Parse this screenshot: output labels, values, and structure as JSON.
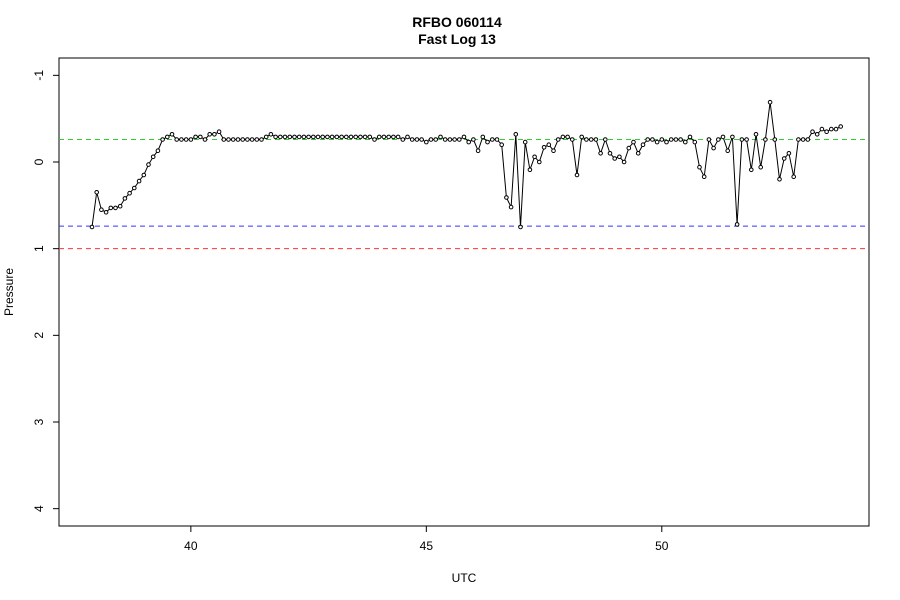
{
  "chart_data": {
    "type": "line",
    "title": "RFBO 060114",
    "subtitle": "Fast Log 13",
    "xlabel": "UTC",
    "ylabel": "Pressure",
    "xlim": [
      37.2,
      54.4
    ],
    "ylim": [
      4.2,
      -1.2
    ],
    "y_axis_reversed": true,
    "grid": false,
    "x_ticks": [
      {
        "value": 40,
        "label": "40"
      },
      {
        "value": 45,
        "label": "45"
      },
      {
        "value": 50,
        "label": "50"
      }
    ],
    "y_ticks": [
      {
        "value": -1,
        "label": "-1"
      },
      {
        "value": 0,
        "label": "0"
      },
      {
        "value": 1,
        "label": "1"
      },
      {
        "value": 2,
        "label": "2"
      },
      {
        "value": 3,
        "label": "3"
      },
      {
        "value": 4,
        "label": "4"
      }
    ],
    "reference_lines": [
      {
        "y": -0.26,
        "color": "#33cc33",
        "style": "dashed"
      },
      {
        "y": 0.74,
        "color": "#3333ff",
        "style": "dashed"
      },
      {
        "y": 1.0,
        "color": "#ff3333",
        "style": "dashed"
      }
    ],
    "series": [
      {
        "color": "#000000",
        "marker": "circle",
        "x": [
          37.9,
          38.0,
          38.1,
          38.2,
          38.3,
          38.4,
          38.5,
          38.6,
          38.7,
          38.8,
          38.9,
          39.0,
          39.1,
          39.2,
          39.3,
          39.4,
          39.5,
          39.6,
          39.7,
          39.8,
          39.9,
          40.0,
          40.1,
          40.2,
          40.3,
          40.4,
          40.5,
          40.6,
          40.7,
          40.8,
          40.9,
          41.0,
          41.1,
          41.2,
          41.3,
          41.4,
          41.5,
          41.6,
          41.7,
          41.8,
          41.9,
          42.0,
          42.1,
          42.2,
          42.3,
          42.4,
          42.5,
          42.6,
          42.7,
          42.8,
          42.9,
          43.0,
          43.1,
          43.2,
          43.3,
          43.4,
          43.5,
          43.6,
          43.7,
          43.8,
          43.9,
          44.0,
          44.1,
          44.2,
          44.3,
          44.4,
          44.5,
          44.6,
          44.7,
          44.8,
          44.9,
          45.0,
          45.1,
          45.2,
          45.3,
          45.4,
          45.5,
          45.6,
          45.7,
          45.8,
          45.9,
          46.0,
          46.1,
          46.2,
          46.3,
          46.4,
          46.5,
          46.6,
          46.7,
          46.8,
          46.9,
          47.0,
          47.1,
          47.2,
          47.3,
          47.4,
          47.5,
          47.6,
          47.7,
          47.8,
          47.9,
          48.0,
          48.1,
          48.2,
          48.3,
          48.4,
          48.5,
          48.6,
          48.7,
          48.8,
          48.9,
          49.0,
          49.1,
          49.2,
          49.3,
          49.4,
          49.5,
          49.6,
          49.7,
          49.8,
          49.9,
          50.0,
          50.1,
          50.2,
          50.3,
          50.4,
          50.5,
          50.6,
          50.7,
          50.8,
          50.9,
          51.0,
          51.1,
          51.2,
          51.3,
          51.4,
          51.5,
          51.6,
          51.7,
          51.8,
          51.9,
          52.0,
          52.1,
          52.2,
          52.3,
          52.4,
          52.5,
          52.6,
          52.7,
          52.8,
          52.9,
          53.0,
          53.1,
          53.2,
          53.3,
          53.4,
          53.5,
          53.6,
          53.7,
          53.8
        ],
        "y": [
          0.75,
          0.35,
          0.55,
          0.58,
          0.53,
          0.53,
          0.51,
          0.42,
          0.36,
          0.3,
          0.22,
          0.15,
          0.03,
          -0.06,
          -0.13,
          -0.26,
          -0.29,
          -0.32,
          -0.26,
          -0.26,
          -0.26,
          -0.26,
          -0.29,
          -0.29,
          -0.26,
          -0.32,
          -0.32,
          -0.35,
          -0.26,
          -0.26,
          -0.26,
          -0.26,
          -0.26,
          -0.26,
          -0.26,
          -0.26,
          -0.26,
          -0.29,
          -0.32,
          -0.29,
          -0.29,
          -0.29,
          -0.29,
          -0.29,
          -0.29,
          -0.29,
          -0.29,
          -0.29,
          -0.29,
          -0.29,
          -0.29,
          -0.29,
          -0.29,
          -0.29,
          -0.29,
          -0.29,
          -0.29,
          -0.29,
          -0.29,
          -0.29,
          -0.26,
          -0.29,
          -0.29,
          -0.29,
          -0.29,
          -0.29,
          -0.26,
          -0.29,
          -0.26,
          -0.26,
          -0.26,
          -0.23,
          -0.26,
          -0.26,
          -0.29,
          -0.26,
          -0.26,
          -0.26,
          -0.26,
          -0.29,
          -0.23,
          -0.26,
          -0.13,
          -0.29,
          -0.23,
          -0.26,
          -0.26,
          -0.2,
          0.41,
          0.52,
          -0.32,
          0.75,
          -0.23,
          0.09,
          -0.06,
          0.0,
          -0.17,
          -0.2,
          -0.13,
          -0.26,
          -0.29,
          -0.29,
          -0.26,
          0.15,
          -0.29,
          -0.26,
          -0.26,
          -0.26,
          -0.1,
          -0.26,
          -0.1,
          -0.04,
          -0.06,
          0.0,
          -0.16,
          -0.23,
          -0.1,
          -0.2,
          -0.26,
          -0.26,
          -0.23,
          -0.26,
          -0.23,
          -0.26,
          -0.26,
          -0.26,
          -0.23,
          -0.29,
          -0.23,
          0.06,
          0.17,
          -0.26,
          -0.16,
          -0.26,
          -0.29,
          -0.13,
          -0.29,
          0.72,
          -0.26,
          -0.26,
          0.09,
          -0.32,
          0.06,
          -0.26,
          -0.69,
          -0.26,
          0.2,
          -0.04,
          -0.1,
          0.17,
          -0.26,
          -0.26,
          -0.26,
          -0.35,
          -0.32,
          -0.38,
          -0.35,
          -0.38,
          -0.38,
          -0.41
        ]
      }
    ]
  }
}
